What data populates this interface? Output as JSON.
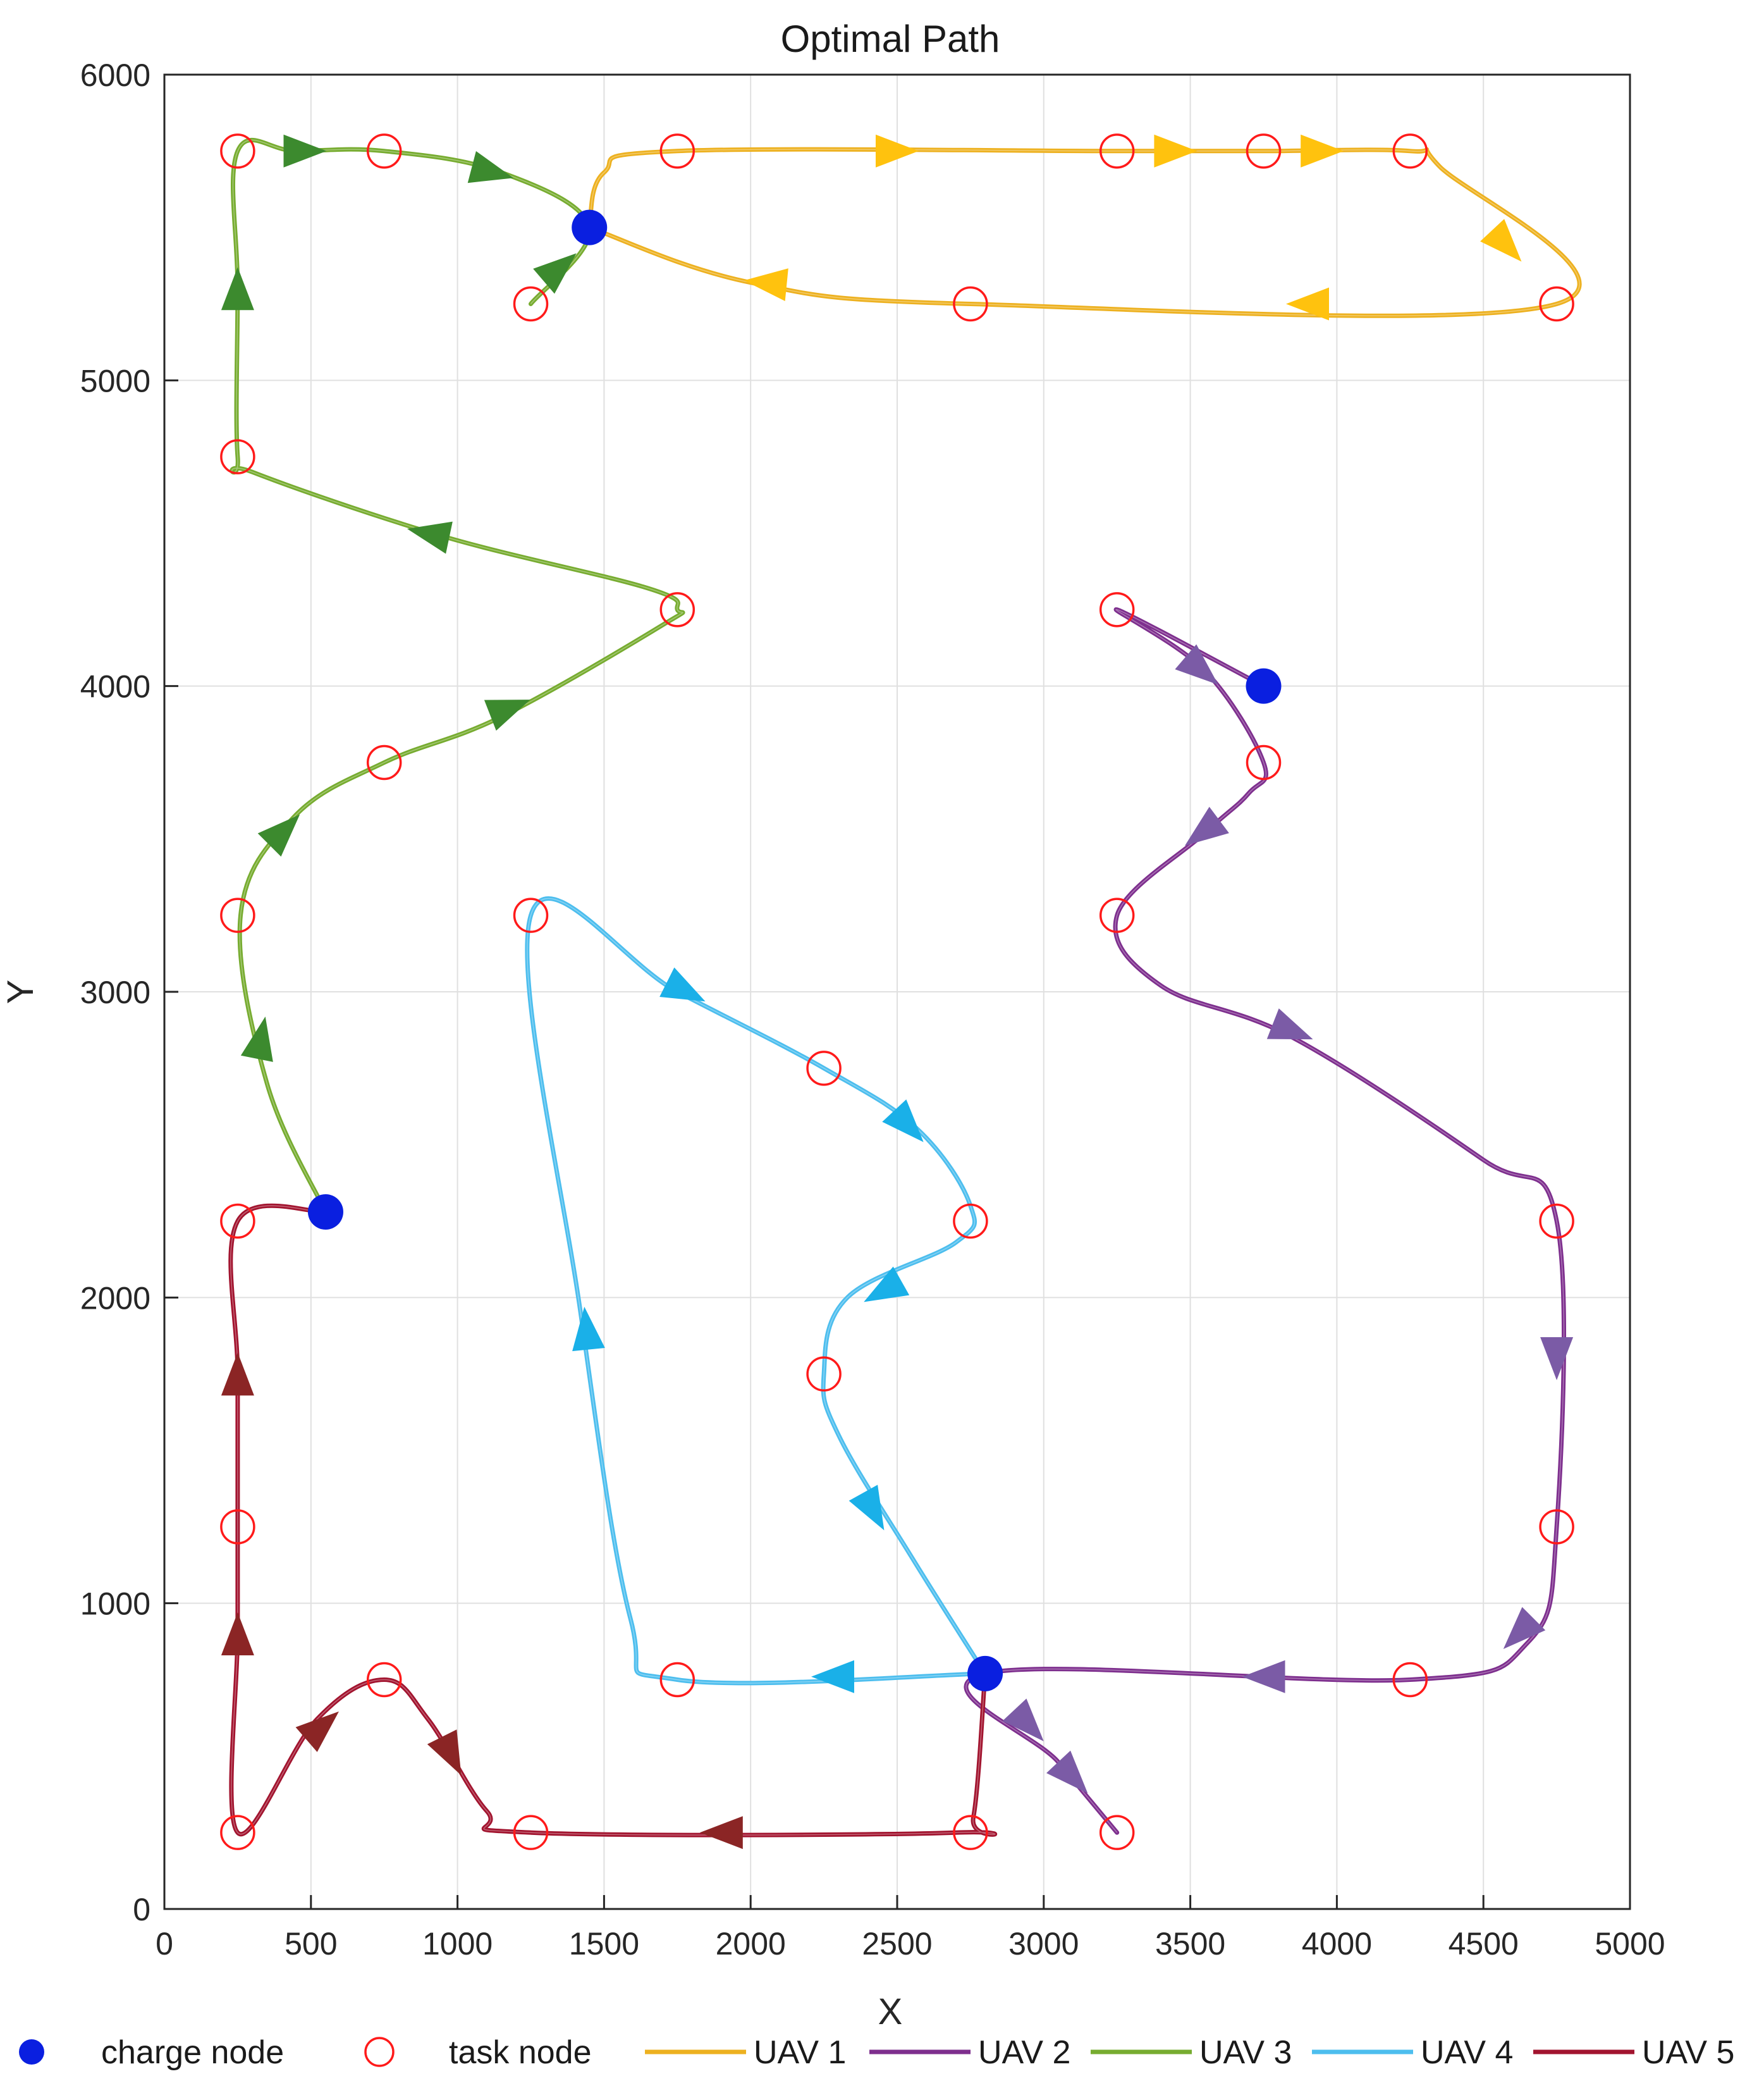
{
  "chart_data": {
    "type": "line",
    "title": "Optimal Path",
    "xlabel": "X",
    "ylabel": "Y",
    "xlim": [
      0,
      5000
    ],
    "ylim": [
      0,
      6000
    ],
    "x_ticks": [
      "0",
      "500",
      "1000",
      "1500",
      "2000",
      "2500",
      "3000",
      "3500",
      "4000",
      "4500",
      "5000"
    ],
    "y_ticks": [
      "0",
      "1000",
      "2000",
      "3000",
      "4000",
      "5000",
      "6000"
    ],
    "grid": true,
    "legend_position": "bottom",
    "legend": {
      "charge_node": "charge node",
      "task_node": "task node"
    },
    "charge_nodes": [
      {
        "x": 1450,
        "y": 5500
      },
      {
        "x": 3750,
        "y": 4000
      },
      {
        "x": 550,
        "y": 2280
      },
      {
        "x": 2800,
        "y": 770
      }
    ],
    "task_nodes": [
      {
        "x": 250,
        "y": 5750
      },
      {
        "x": 750,
        "y": 5750
      },
      {
        "x": 1750,
        "y": 5750
      },
      {
        "x": 3250,
        "y": 5750
      },
      {
        "x": 3750,
        "y": 5750
      },
      {
        "x": 4250,
        "y": 5750
      },
      {
        "x": 1250,
        "y": 5250
      },
      {
        "x": 2750,
        "y": 5250
      },
      {
        "x": 4750,
        "y": 5250
      },
      {
        "x": 250,
        "y": 4750
      },
      {
        "x": 1750,
        "y": 4250
      },
      {
        "x": 3250,
        "y": 4250
      },
      {
        "x": 750,
        "y": 3750
      },
      {
        "x": 3750,
        "y": 3750
      },
      {
        "x": 250,
        "y": 3250
      },
      {
        "x": 1250,
        "y": 3250
      },
      {
        "x": 3250,
        "y": 3250
      },
      {
        "x": 2250,
        "y": 2750
      },
      {
        "x": 250,
        "y": 2250
      },
      {
        "x": 2750,
        "y": 2250
      },
      {
        "x": 4750,
        "y": 2250
      },
      {
        "x": 2250,
        "y": 1750
      },
      {
        "x": 250,
        "y": 1250
      },
      {
        "x": 4750,
        "y": 1250
      },
      {
        "x": 750,
        "y": 750
      },
      {
        "x": 1750,
        "y": 750
      },
      {
        "x": 4250,
        "y": 750
      },
      {
        "x": 250,
        "y": 250
      },
      {
        "x": 1250,
        "y": 250
      },
      {
        "x": 2750,
        "y": 250
      },
      {
        "x": 3250,
        "y": 250
      }
    ],
    "series": [
      {
        "name": "UAV 1",
        "color": "#EDB120",
        "arrow_color": "#FFC20E",
        "path": [
          [
            1450,
            5500
          ],
          [
            1500,
            5680
          ],
          [
            1750,
            5750
          ],
          [
            3250,
            5750
          ],
          [
            3750,
            5750
          ],
          [
            4250,
            5750
          ],
          [
            4350,
            5700
          ],
          [
            4750,
            5250
          ],
          [
            2750,
            5250
          ],
          [
            2000,
            5320
          ],
          [
            1450,
            5500
          ]
        ],
        "arrows": [
          [
            2500,
            5750,
            1,
            0
          ],
          [
            3450,
            5750,
            1,
            0
          ],
          [
            3950,
            5750,
            1,
            0
          ],
          [
            4580,
            5440,
            0.7,
            -0.75
          ],
          [
            3900,
            5250,
            -1,
            0
          ],
          [
            2050,
            5320,
            -1,
            0.1
          ]
        ]
      },
      {
        "name": "UAV 2",
        "color": "#7E2F8E",
        "arrow_color": "#7B5BA6",
        "path": [
          [
            3750,
            4000
          ],
          [
            3250,
            4250
          ],
          [
            3550,
            4050
          ],
          [
            3750,
            3750
          ],
          [
            3700,
            3650
          ],
          [
            3550,
            3520
          ],
          [
            3250,
            3250
          ],
          [
            3400,
            3020
          ],
          [
            3850,
            2850
          ],
          [
            4500,
            2450
          ],
          [
            4750,
            2250
          ],
          [
            4750,
            1250
          ],
          [
            4650,
            870
          ],
          [
            4250,
            750
          ],
          [
            2800,
            770
          ],
          [
            3050,
            480
          ],
          [
            3250,
            250
          ]
        ],
        "arrows": [
          [
            3540,
            4050,
            0.7,
            -0.6
          ],
          [
            3540,
            3520,
            -0.8,
            -0.6
          ],
          [
            3850,
            2870,
            0.9,
            -0.35
          ],
          [
            4750,
            1800,
            0,
            -1
          ],
          [
            4620,
            900,
            -0.7,
            -0.7
          ],
          [
            3750,
            760,
            -1,
            0
          ],
          [
            2950,
            600,
            0.7,
            -0.75
          ],
          [
            3100,
            430,
            0.7,
            -0.75
          ]
        ]
      },
      {
        "name": "UAV 3",
        "color": "#77AC30",
        "arrow_color": "#3C8A2E",
        "path": [
          [
            550,
            2280
          ],
          [
            350,
            2700
          ],
          [
            260,
            3250
          ],
          [
            440,
            3570
          ],
          [
            750,
            3750
          ],
          [
            1150,
            3900
          ],
          [
            1700,
            4200
          ],
          [
            1750,
            4250
          ],
          [
            1650,
            4320
          ],
          [
            950,
            4490
          ],
          [
            300,
            4700
          ],
          [
            250,
            4750
          ],
          [
            250,
            5300
          ],
          [
            250,
            5750
          ],
          [
            450,
            5750
          ],
          [
            750,
            5750
          ],
          [
            1150,
            5680
          ],
          [
            1450,
            5500
          ],
          [
            1250,
            5250
          ]
        ],
        "arrows": [
          [
            330,
            2850,
            0.2,
            1
          ],
          [
            410,
            3530,
            0.6,
            0.6
          ],
          [
            1180,
            3930,
            0.9,
            0.35
          ],
          [
            900,
            4500,
            -0.95,
            0.2
          ],
          [
            250,
            5300,
            0,
            1
          ],
          [
            480,
            5750,
            1,
            0
          ],
          [
            1120,
            5680,
            0.95,
            -0.25
          ],
          [
            1350,
            5370,
            0.7,
            0.6
          ]
        ]
      },
      {
        "name": "UAV 4",
        "color": "#4DBEEE",
        "arrow_color": "#1AB0E8",
        "path": [
          [
            2800,
            770
          ],
          [
            2550,
            1150
          ],
          [
            2300,
            1550
          ],
          [
            2250,
            1750
          ],
          [
            2330,
            2000
          ],
          [
            2700,
            2180
          ],
          [
            2750,
            2300
          ],
          [
            2570,
            2550
          ],
          [
            2250,
            2750
          ],
          [
            1750,
            3000
          ],
          [
            1250,
            3250
          ],
          [
            1420,
            1950
          ],
          [
            1590,
            950
          ],
          [
            1750,
            750
          ],
          [
            2800,
            770
          ]
        ],
        "arrows": [
          [
            2420,
            1300,
            0.5,
            -0.9
          ],
          [
            2450,
            2020,
            -0.8,
            -0.45
          ],
          [
            2540,
            2560,
            0.7,
            -0.75
          ],
          [
            1780,
            3000,
            0.9,
            -0.45
          ],
          [
            1440,
            1900,
            -0.1,
            1
          ],
          [
            2280,
            760,
            -1,
            0
          ]
        ]
      },
      {
        "name": "UAV 5",
        "color": "#A2142F",
        "arrow_color": "#8B2525",
        "path": [
          [
            550,
            2280
          ],
          [
            250,
            2250
          ],
          [
            250,
            1750
          ],
          [
            250,
            1250
          ],
          [
            250,
            900
          ],
          [
            250,
            250
          ],
          [
            520,
            620
          ],
          [
            750,
            750
          ],
          [
            900,
            620
          ],
          [
            1100,
            320
          ],
          [
            1250,
            250
          ],
          [
            2700,
            250
          ],
          [
            2760,
            300
          ],
          [
            2800,
            770
          ]
        ],
        "arrows": [
          [
            250,
            1750,
            0,
            1
          ],
          [
            250,
            900,
            0,
            1
          ],
          [
            540,
            600,
            0.75,
            0.65
          ],
          [
            980,
            500,
            0.45,
            -0.9
          ],
          [
            1900,
            250,
            -1,
            0
          ]
        ]
      }
    ]
  }
}
